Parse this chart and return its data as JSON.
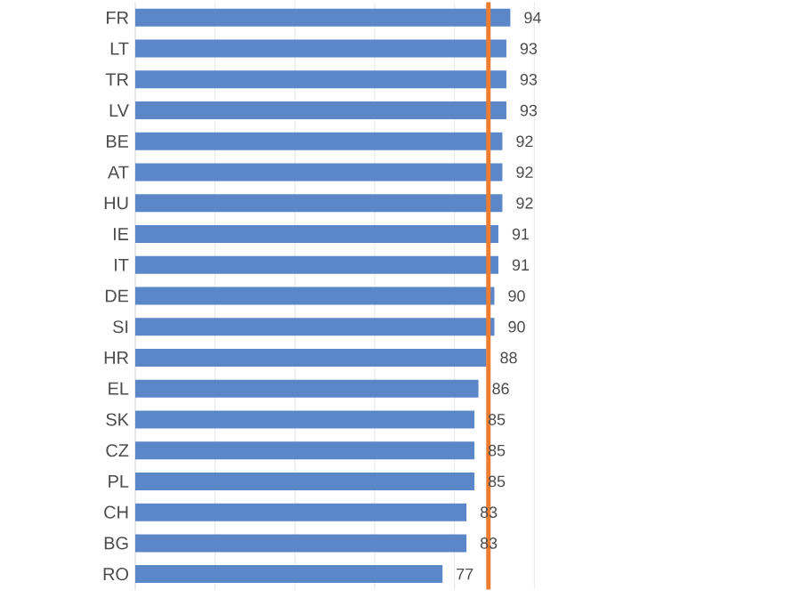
{
  "chart_data": {
    "type": "bar",
    "orientation": "horizontal",
    "categories": [
      "FR",
      "LT",
      "TR",
      "LV",
      "BE",
      "AT",
      "HU",
      "IE",
      "IT",
      "DE",
      "SI",
      "HR",
      "EL",
      "SK",
      "CZ",
      "PL",
      "CH",
      "BG",
      "RO"
    ],
    "values": [
      94,
      93,
      93,
      93,
      92,
      92,
      92,
      91,
      91,
      90,
      90,
      88,
      86,
      85,
      85,
      85,
      83,
      83,
      77
    ],
    "color": "#5b87c8",
    "tick_labels": "y",
    "grid": "x",
    "data_labels": true,
    "ref_lines": [
      {
        "axis": "x",
        "value": 88.5,
        "color": "#ed7d31"
      }
    ]
  }
}
